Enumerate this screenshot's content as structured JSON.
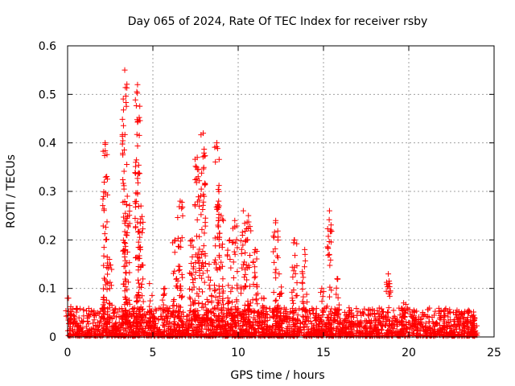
{
  "chart_data": {
    "type": "scatter",
    "title": "Day 065 of 2024, Rate Of TEC Index for receiver rsby",
    "xlabel": "GPS time / hours",
    "ylabel": "ROTI / TECUs",
    "xlim": [
      0,
      25
    ],
    "ylim": [
      0,
      0.6
    ],
    "xticks": [
      0,
      5,
      10,
      15,
      20,
      25
    ],
    "xtick_labels": [
      "0",
      "5",
      "10",
      "15",
      "20",
      "25"
    ],
    "yticks": [
      0,
      0.1,
      0.2,
      0.3,
      0.4,
      0.5,
      0.6
    ],
    "ytick_labels": [
      "0",
      "0.1",
      "0.2",
      "0.3",
      "0.4",
      "0.5",
      "0.6"
    ],
    "grid": true,
    "marker": "+",
    "marker_color": "#ff0000",
    "baseline": {
      "x_start": 0,
      "x_end": 24,
      "min": 0.002,
      "max": 0.06,
      "typical": 0.025
    },
    "series": [
      {
        "name": "ROTI",
        "spikes": [
          {
            "x": 0.05,
            "y_max": 0.08
          },
          {
            "x": 2.2,
            "y_max": 0.4
          },
          {
            "x": 2.45,
            "y_max": 0.16
          },
          {
            "x": 3.35,
            "y_max": 0.55
          },
          {
            "x": 3.5,
            "y_max": 0.29
          },
          {
            "x": 4.1,
            "y_max": 0.52
          },
          {
            "x": 4.3,
            "y_max": 0.27
          },
          {
            "x": 4.8,
            "y_max": 0.11
          },
          {
            "x": 5.7,
            "y_max": 0.1
          },
          {
            "x": 6.3,
            "y_max": 0.2
          },
          {
            "x": 6.6,
            "y_max": 0.28
          },
          {
            "x": 7.3,
            "y_max": 0.2
          },
          {
            "x": 7.6,
            "y_max": 0.37
          },
          {
            "x": 7.95,
            "y_max": 0.42
          },
          {
            "x": 8.3,
            "y_max": 0.15
          },
          {
            "x": 8.75,
            "y_max": 0.4
          },
          {
            "x": 9.0,
            "y_max": 0.25
          },
          {
            "x": 9.5,
            "y_max": 0.2
          },
          {
            "x": 9.8,
            "y_max": 0.24
          },
          {
            "x": 10.3,
            "y_max": 0.26
          },
          {
            "x": 10.6,
            "y_max": 0.25
          },
          {
            "x": 11.0,
            "y_max": 0.18
          },
          {
            "x": 11.5,
            "y_max": 0.08
          },
          {
            "x": 12.2,
            "y_max": 0.24
          },
          {
            "x": 12.4,
            "y_max": 0.13
          },
          {
            "x": 13.3,
            "y_max": 0.2
          },
          {
            "x": 13.9,
            "y_max": 0.18
          },
          {
            "x": 14.9,
            "y_max": 0.1
          },
          {
            "x": 15.35,
            "y_max": 0.26
          },
          {
            "x": 15.8,
            "y_max": 0.12
          },
          {
            "x": 16.5,
            "y_max": 0.06
          },
          {
            "x": 18.8,
            "y_max": 0.13
          },
          {
            "x": 19.7,
            "y_max": 0.07
          },
          {
            "x": 20.3,
            "y_max": 0.055
          },
          {
            "x": 23.5,
            "y_max": 0.055
          }
        ]
      }
    ]
  }
}
